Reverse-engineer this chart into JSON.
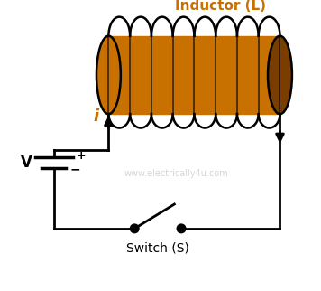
{
  "bg_color": "#ffffff",
  "line_color": "#000000",
  "inductor_color": "#c87000",
  "inductor_end_color": "#7a3d00",
  "coil_color": "#000000",
  "title_text": "Inductor (L)",
  "title_color": "#c87000",
  "switch_label": "Switch (S)",
  "switch_label_color": "#000000",
  "battery_label": "V",
  "battery_color": "#000000",
  "current_label": "i",
  "current_color": "#c87000",
  "watermark": "www.electrically4u.com",
  "watermark_color": "#bbbbbb",
  "figsize": [
    3.56,
    3.22
  ],
  "dpi": 100,
  "num_coils": 8
}
